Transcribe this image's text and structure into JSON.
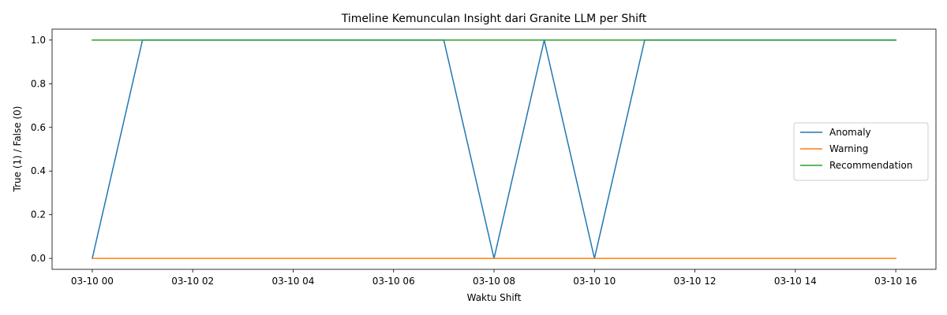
{
  "chart_data": {
    "type": "line",
    "title": "Timeline Kemunculan Insight dari Granite LLM per Shift",
    "xlabel": "Waktu Shift",
    "ylabel": "True (1) / False (0)",
    "x": [
      "03-10 00",
      "03-10 01",
      "03-10 02",
      "03-10 03",
      "03-10 04",
      "03-10 05",
      "03-10 06",
      "03-10 07",
      "03-10 08",
      "03-10 09",
      "03-10 10",
      "03-10 11",
      "03-10 12",
      "03-10 13",
      "03-10 14",
      "03-10 15",
      "03-10 16"
    ],
    "x_ticks": [
      "03-10 00",
      "03-10 02",
      "03-10 04",
      "03-10 06",
      "03-10 08",
      "03-10 10",
      "03-10 12",
      "03-10 14",
      "03-10 16"
    ],
    "y_ticks": [
      "0.0",
      "0.2",
      "0.4",
      "0.6",
      "0.8",
      "1.0"
    ],
    "xlim": [
      "03-09 23:12",
      "03-10 16:48"
    ],
    "ylim": [
      -0.05,
      1.05
    ],
    "grid": false,
    "legend_position": "center-right",
    "series": [
      {
        "name": "Anomaly",
        "color": "#1f77b4",
        "values": [
          0,
          1,
          1,
          1,
          1,
          1,
          1,
          1,
          0,
          1,
          0,
          1,
          1,
          1,
          1,
          1,
          1
        ]
      },
      {
        "name": "Warning",
        "color": "#ff7f0e",
        "values": [
          0,
          0,
          0,
          0,
          0,
          0,
          0,
          0,
          0,
          0,
          0,
          0,
          0,
          0,
          0,
          0,
          0
        ]
      },
      {
        "name": "Recommendation",
        "color": "#2ca02c",
        "values": [
          1,
          1,
          1,
          1,
          1,
          1,
          1,
          1,
          1,
          1,
          1,
          1,
          1,
          1,
          1,
          1,
          1
        ]
      }
    ]
  }
}
